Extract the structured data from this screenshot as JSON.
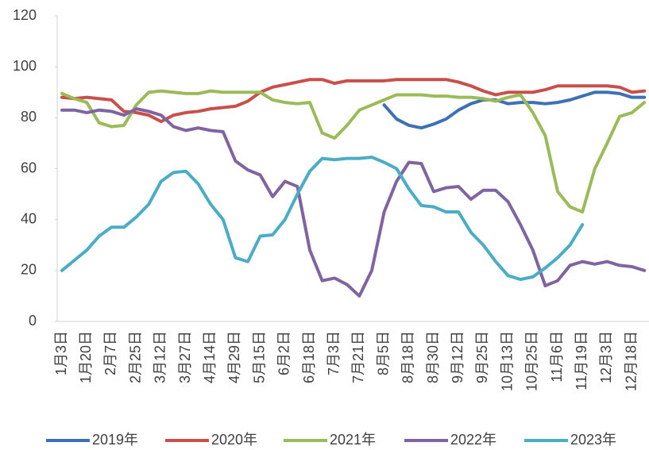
{
  "chart_data": {
    "type": "line",
    "categories": [
      "1月3日",
      null,
      "1月20日",
      null,
      "2月7日",
      null,
      "2月25日",
      null,
      "3月12日",
      null,
      "3月27日",
      null,
      "4月14日",
      null,
      "4月29日",
      null,
      "5月15日",
      null,
      "6月2日",
      null,
      "6月18日",
      null,
      "7月3日",
      null,
      "7月21日",
      null,
      "8月5日",
      null,
      "8月18日",
      null,
      "8月30日",
      null,
      "9月12日",
      null,
      "9月25日",
      null,
      "10月13日",
      null,
      "10月25日",
      null,
      "11月6日",
      null,
      "11月19日",
      null,
      "12月3日",
      null,
      "12月18日",
      null
    ],
    "series": [
      {
        "name": "2019年",
        "color": "#3e70b5",
        "values": [
          null,
          null,
          null,
          null,
          null,
          null,
          null,
          null,
          null,
          null,
          null,
          null,
          null,
          null,
          null,
          null,
          null,
          null,
          null,
          null,
          null,
          null,
          null,
          null,
          null,
          null,
          85,
          79.5,
          77,
          76,
          77.5,
          79.5,
          83,
          85.5,
          87,
          87,
          85.5,
          86,
          86,
          85.5,
          86,
          87,
          88.5,
          90,
          90,
          89.5,
          88,
          88
        ]
      },
      {
        "name": "2020年",
        "color": "#c8504b",
        "values": [
          88,
          87.5,
          88,
          87.5,
          87,
          82.5,
          82,
          81,
          78.5,
          81,
          82,
          82.5,
          83.5,
          84,
          84.5,
          86.5,
          90,
          92,
          93,
          94,
          95,
          95,
          93.5,
          94.5,
          94.5,
          94.5,
          94.5,
          95,
          95,
          95,
          95,
          95,
          94,
          92.5,
          90.5,
          89,
          90,
          90,
          90,
          91,
          92.5,
          92.5,
          92.5,
          92.5,
          92.5,
          92,
          90,
          90.5
        ]
      },
      {
        "name": "2021年",
        "color": "#9bbb59",
        "values": [
          89.5,
          87.5,
          86,
          78,
          76.5,
          77,
          85,
          90,
          90.5,
          90,
          89.5,
          89.5,
          90.5,
          90,
          90,
          90,
          90,
          87,
          86,
          85.5,
          86,
          74,
          72,
          77,
          83,
          85,
          87,
          89,
          89,
          89,
          88.5,
          88.5,
          88,
          88,
          87.5,
          86.5,
          88,
          89,
          82,
          73,
          51,
          45,
          43,
          60,
          70,
          80.5,
          82,
          86
        ]
      },
      {
        "name": "2022年",
        "color": "#8064a2",
        "values": [
          83,
          83,
          82,
          83,
          82.5,
          81,
          83.5,
          82.5,
          81,
          76.5,
          75,
          76,
          75,
          74.5,
          63,
          59.5,
          57.5,
          49,
          55,
          53,
          28,
          16,
          17,
          14.5,
          10,
          20,
          43,
          55,
          62.5,
          62,
          51,
          52.5,
          53,
          48,
          51.5,
          51.5,
          47,
          38,
          28,
          14,
          16,
          22,
          23.5,
          22.5,
          23.5,
          22,
          21.5,
          20
        ]
      },
      {
        "name": "2023年",
        "color": "#4bacc6",
        "values": [
          20,
          24,
          28,
          33.5,
          37,
          37,
          41,
          46,
          55,
          58.5,
          59,
          54,
          46,
          40,
          25,
          23.5,
          33.5,
          34,
          40,
          50,
          59,
          64,
          63.5,
          64,
          64,
          64.5,
          62.5,
          60,
          52,
          45.5,
          45,
          43,
          43,
          35,
          30,
          23.5,
          18,
          16.5,
          17.5,
          21,
          25,
          30,
          38,
          null,
          null,
          null,
          null,
          null
        ]
      }
    ],
    "ylim": [
      0,
      120
    ],
    "yticks": [
      0,
      20,
      40,
      60,
      80,
      100,
      120
    ],
    "grid": false,
    "legend": "bottom"
  }
}
